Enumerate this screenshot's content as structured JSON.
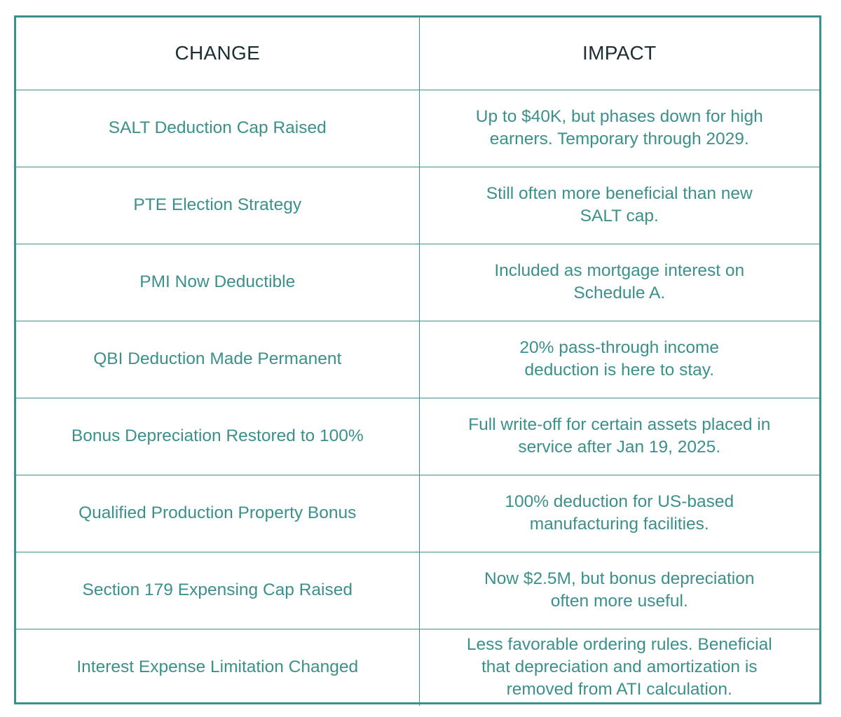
{
  "table": {
    "headers": {
      "change": "CHANGE",
      "impact": "IMPACT"
    },
    "rows": [
      {
        "change": "SALT Deduction Cap Raised",
        "impact": "Up to $40K, but phases down for high earners. Temporary through 2029."
      },
      {
        "change": "PTE Election Strategy",
        "impact": "Still often more beneficial than new SALT cap."
      },
      {
        "change": "PMI Now Deductible",
        "impact": "Included as mortgage interest on Schedule A."
      },
      {
        "change": "QBI Deduction Made Permanent",
        "impact": "20% pass-through income deduction is here to stay."
      },
      {
        "change": "Bonus Depreciation Restored to 100%",
        "impact": "Full write-off for certain assets placed in service after Jan 19, 2025."
      },
      {
        "change": "Qualified Production Property Bonus",
        "impact": "100% deduction for US-based manufacturing facilities."
      },
      {
        "change": "Section 179 Expensing Cap Raised",
        "impact": "Now $2.5M, but bonus depreciation often more useful."
      },
      {
        "change": "Interest Expense Limitation Changed",
        "impact": "Less favorable ordering rules. Beneficial that depreciation and amortization is removed from ATI calculation."
      }
    ]
  },
  "colors": {
    "border": "#3e8f8b",
    "header_text": "#1b2e33",
    "body_text": "#3b908b",
    "background": "#ffffff"
  }
}
